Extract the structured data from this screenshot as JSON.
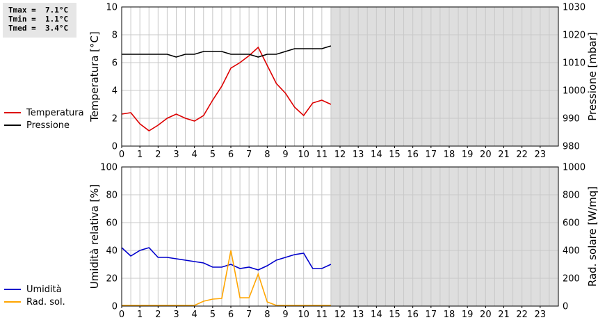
{
  "stats": {
    "lines": [
      "Tmax =  7.1°C",
      "Tmin =  1.1°C",
      "Tmed =  3.4°C"
    ]
  },
  "legend_top": [
    {
      "label": "Temperatura",
      "color": "#dd0000"
    },
    {
      "label": "Pressione",
      "color": "#000000"
    }
  ],
  "legend_bottom": [
    {
      "label": "Umidità",
      "color": "#0000cc"
    },
    {
      "label": "Rad. sol.",
      "color": "#ffa500"
    }
  ],
  "chart_data": [
    {
      "type": "line",
      "x_ticks": [
        "0",
        "1",
        "2",
        "3",
        "4",
        "5",
        "6",
        "7",
        "8",
        "9",
        "10",
        "11",
        "12",
        "13",
        "14",
        "15",
        "16",
        "17",
        "18",
        "19",
        "20",
        "21",
        "22",
        "23"
      ],
      "xlim": [
        0,
        24
      ],
      "shaded_from": 11.5,
      "ylabel": "Temperatura [°C]",
      "ylim": [
        0,
        10
      ],
      "yticks": [
        "0",
        "2",
        "4",
        "6",
        "8",
        "10"
      ],
      "ylabel_right": "Pressione [mbar]",
      "ylim_right": [
        980,
        1030
      ],
      "yticks_right": [
        "980",
        "990",
        "1000",
        "1010",
        "1020",
        "1030"
      ],
      "series": [
        {
          "name": "Temperatura",
          "axis": "left",
          "color": "#dd0000",
          "x": [
            0,
            0.5,
            1,
            1.5,
            2,
            2.5,
            3,
            3.5,
            4,
            4.5,
            5,
            5.5,
            6,
            6.5,
            7,
            7.5,
            8,
            8.5,
            9,
            9.5,
            10,
            10.5,
            11,
            11.5
          ],
          "y": [
            2.3,
            2.4,
            1.6,
            1.1,
            1.5,
            2.0,
            2.3,
            2.0,
            1.8,
            2.2,
            3.3,
            4.3,
            5.6,
            6.0,
            6.5,
            7.1,
            5.8,
            4.5,
            3.8,
            2.8,
            2.2,
            3.1,
            3.3,
            3.0
          ]
        },
        {
          "name": "Pressione",
          "axis": "right",
          "color": "#000000",
          "x": [
            0,
            0.5,
            1,
            1.5,
            2,
            2.5,
            3,
            3.5,
            4,
            4.5,
            5,
            5.5,
            6,
            6.5,
            7,
            7.5,
            8,
            8.5,
            9,
            9.5,
            10,
            10.5,
            11,
            11.5
          ],
          "y": [
            1013,
            1013,
            1013,
            1013,
            1013,
            1013,
            1012,
            1013,
            1013,
            1014,
            1014,
            1014,
            1013,
            1013,
            1013,
            1012,
            1013,
            1013,
            1014,
            1015,
            1015,
            1015,
            1015,
            1016
          ]
        }
      ]
    },
    {
      "type": "line",
      "x_ticks": [
        "0",
        "1",
        "2",
        "3",
        "4",
        "5",
        "6",
        "7",
        "8",
        "9",
        "10",
        "11",
        "12",
        "13",
        "14",
        "15",
        "16",
        "17",
        "18",
        "19",
        "20",
        "21",
        "22",
        "23"
      ],
      "xlim": [
        0,
        24
      ],
      "shaded_from": 11.5,
      "ylabel": "Umidità relativa [%]",
      "ylim": [
        0,
        100
      ],
      "yticks": [
        "0",
        "20",
        "40",
        "60",
        "80",
        "100"
      ],
      "ylabel_right": "Rad. solare [W/mq]",
      "ylim_right": [
        0,
        1000
      ],
      "yticks_right": [
        "0",
        "200",
        "400",
        "600",
        "800",
        "1000"
      ],
      "series": [
        {
          "name": "Umidità",
          "axis": "left",
          "color": "#0000cc",
          "x": [
            0,
            0.5,
            1,
            1.5,
            2,
            2.5,
            3,
            3.5,
            4,
            4.5,
            5,
            5.5,
            6,
            6.5,
            7,
            7.5,
            8,
            8.5,
            9,
            9.5,
            10,
            10.5,
            11,
            11.5
          ],
          "y": [
            42,
            36,
            40,
            42,
            35,
            35,
            34,
            33,
            32,
            31,
            28,
            28,
            30,
            27,
            28,
            26,
            29,
            33,
            35,
            37,
            38,
            27,
            27,
            30
          ]
        },
        {
          "name": "Rad. sol.",
          "axis": "right",
          "color": "#ffa500",
          "x": [
            0,
            0.5,
            1,
            1.5,
            2,
            2.5,
            3,
            3.5,
            4,
            4.5,
            5,
            5.5,
            6,
            6.5,
            7,
            7.5,
            8,
            8.5,
            9,
            9.5,
            10,
            10.5,
            11,
            11.5
          ],
          "y": [
            5,
            5,
            5,
            5,
            5,
            5,
            5,
            5,
            5,
            35,
            50,
            55,
            400,
            60,
            60,
            230,
            30,
            5,
            5,
            5,
            5,
            5,
            5,
            5
          ]
        }
      ]
    }
  ]
}
